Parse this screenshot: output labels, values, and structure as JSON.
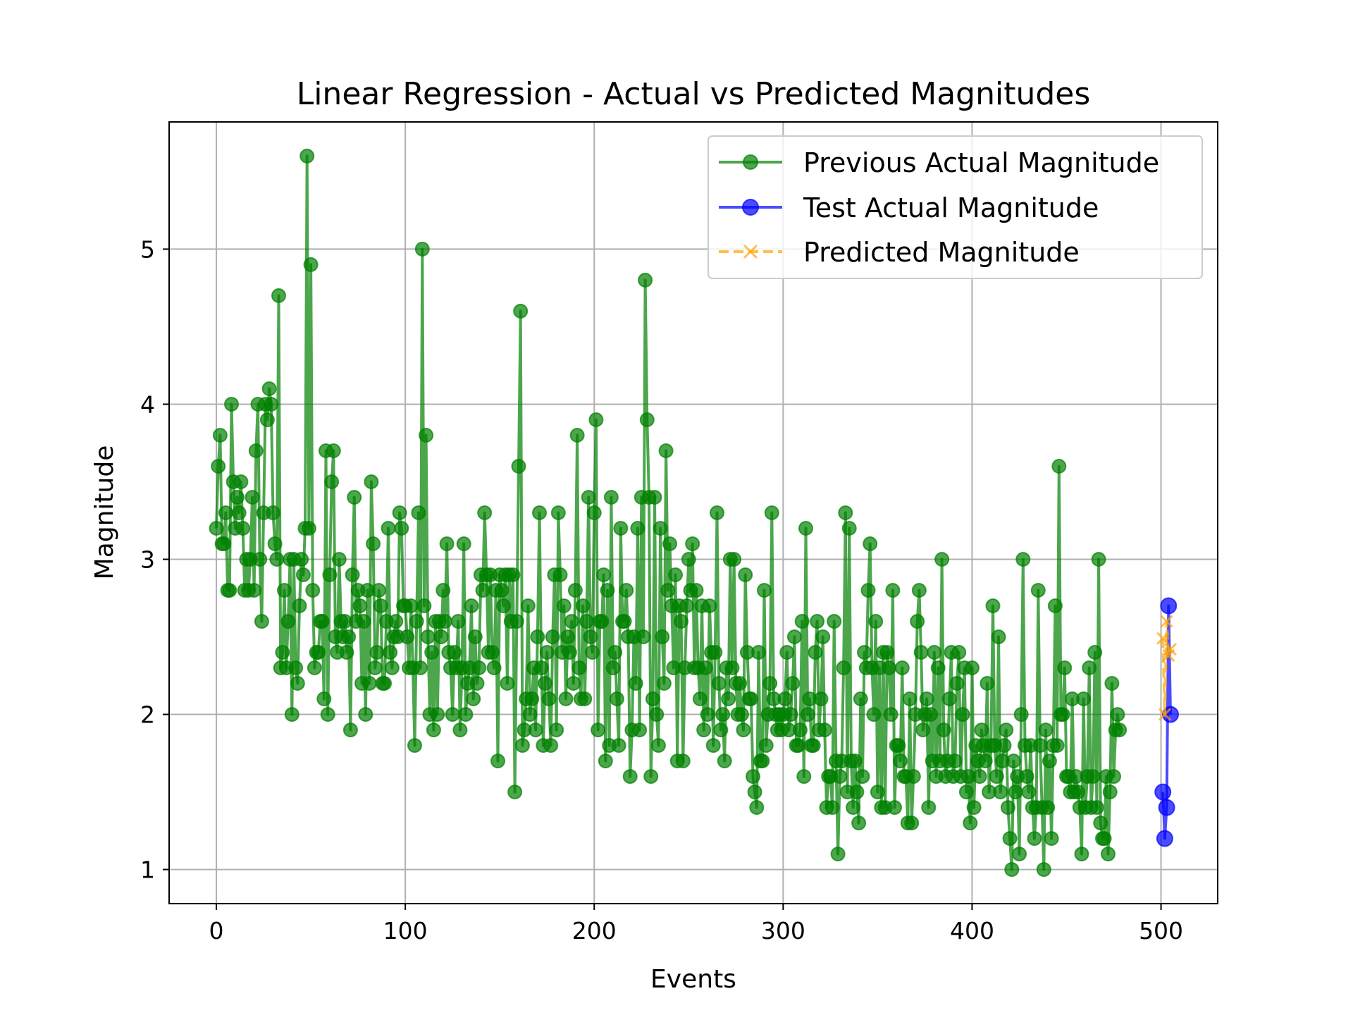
{
  "chart_data": {
    "type": "line",
    "title": "Linear Regression - Actual vs Predicted Magnitudes",
    "xlabel": "Events",
    "ylabel": "Magnitude",
    "xlim": [
      -25,
      530
    ],
    "ylim": [
      0.78,
      5.82
    ],
    "x_ticks": [
      0,
      100,
      200,
      300,
      400,
      500
    ],
    "y_ticks": [
      1,
      2,
      3,
      4,
      5
    ],
    "grid": true,
    "legend_position": "top-right",
    "series": [
      {
        "name": "Previous Actual Magnitude",
        "color": "#008000",
        "marker": "circle",
        "line_style": "solid",
        "x_start": 0,
        "values": [
          3.2,
          3.6,
          3.8,
          3.1,
          3.1,
          3.3,
          2.8,
          2.8,
          4.0,
          3.5,
          3.2,
          3.4,
          3.3,
          3.5,
          3.2,
          2.8,
          3.0,
          2.8,
          3.0,
          3.4,
          2.8,
          3.7,
          4.0,
          3.0,
          2.6,
          3.3,
          4.0,
          3.9,
          4.1,
          4.0,
          3.3,
          3.1,
          3.0,
          4.7,
          2.3,
          2.4,
          2.8,
          2.3,
          2.6,
          3.0,
          2.0,
          3.0,
          2.3,
          2.2,
          2.7,
          3.0,
          2.9,
          3.2,
          5.6,
          3.2,
          4.9,
          2.8,
          2.3,
          2.4,
          2.4,
          2.6,
          2.6,
          2.1,
          3.7,
          2.0,
          2.9,
          3.5,
          3.7,
          2.5,
          2.4,
          3.0,
          2.6,
          2.5,
          2.6,
          2.4,
          2.5,
          1.9,
          2.9,
          3.4,
          2.6,
          2.8,
          2.7,
          2.2,
          2.6,
          2.0,
          2.8,
          2.2,
          3.5,
          3.1,
          2.3,
          2.4,
          2.8,
          2.7,
          2.2,
          2.2,
          2.6,
          3.2,
          2.4,
          2.3,
          2.5,
          2.6,
          2.5,
          3.3,
          3.2,
          2.7,
          2.7,
          2.5,
          2.3,
          2.7,
          2.3,
          1.8,
          2.6,
          3.3,
          2.3,
          5.0,
          2.7,
          3.8,
          2.5,
          2.0,
          2.4,
          1.9,
          2.6,
          2.0,
          2.6,
          2.5,
          2.8,
          2.6,
          3.1,
          2.4,
          2.3,
          2.0,
          2.4,
          2.3,
          2.6,
          1.9,
          2.3,
          3.1,
          2.0,
          2.2,
          2.3,
          2.7,
          2.1,
          2.5,
          2.2,
          2.3,
          2.9,
          2.8,
          3.3,
          2.9,
          2.4,
          2.9,
          2.4,
          2.3,
          2.8,
          1.7,
          2.9,
          2.8,
          2.7,
          2.9,
          2.2,
          2.9,
          2.6,
          2.9,
          1.5,
          2.6,
          3.6,
          4.6,
          1.8,
          1.9,
          2.1,
          2.7,
          2.0,
          2.1,
          2.3,
          1.9,
          2.5,
          3.3,
          2.3,
          1.8,
          2.2,
          2.4,
          2.1,
          1.8,
          2.5,
          2.9,
          1.9,
          3.3,
          2.9,
          2.4,
          2.7,
          2.1,
          2.5,
          2.4,
          2.6,
          2.2,
          2.8,
          3.8,
          2.3,
          2.1,
          2.7,
          2.1,
          2.6,
          3.4,
          2.5,
          2.4,
          3.3,
          3.9,
          1.9,
          2.6,
          2.6,
          2.9,
          1.7,
          2.8,
          1.8,
          3.4,
          2.3,
          2.4,
          2.1,
          1.8,
          3.2,
          2.6,
          2.6,
          2.8,
          2.5,
          1.6,
          1.9,
          2.5,
          2.2,
          3.2,
          1.9,
          3.4,
          2.5,
          4.8,
          3.9,
          3.4,
          1.6,
          2.1,
          3.4,
          2.0,
          1.8,
          3.2,
          2.5,
          2.2,
          3.7,
          2.8,
          3.1,
          2.7,
          2.3,
          2.9,
          1.7,
          2.7,
          2.6,
          1.7,
          2.3,
          2.7,
          3.0,
          2.8,
          3.1,
          2.3,
          2.8,
          2.3,
          2.1,
          2.7,
          1.9,
          2.3,
          2.0,
          2.7,
          2.4,
          1.8,
          2.4,
          3.3,
          2.2,
          1.9,
          2.0,
          1.7,
          2.3,
          2.1,
          3.0,
          2.3,
          3.0,
          2.2,
          2.0,
          2.2,
          2.0,
          1.9,
          2.9,
          2.4,
          2.1,
          2.1,
          1.6,
          1.5,
          1.4,
          2.4,
          1.7,
          1.7,
          2.8,
          1.8,
          2.0,
          2.2,
          3.3,
          2.1,
          2.0,
          1.9,
          2.0,
          1.9,
          2.0,
          2.1,
          2.4,
          1.9,
          2.0,
          2.2,
          2.5,
          1.8,
          1.8,
          1.9,
          2.6,
          1.6,
          3.2,
          2.0,
          2.1,
          1.8,
          1.8,
          2.4,
          2.6,
          1.9,
          2.1,
          2.5,
          1.9,
          1.4,
          1.6,
          1.6,
          1.4,
          2.6,
          1.7,
          1.1,
          1.6,
          1.7,
          2.3,
          3.3,
          1.5,
          3.2,
          1.7,
          1.4,
          1.7,
          1.5,
          1.3,
          2.1,
          1.6,
          2.4,
          2.3,
          2.8,
          3.1,
          2.3,
          2.0,
          2.6,
          1.5,
          2.3,
          1.4,
          2.4,
          1.4,
          2.4,
          2.3,
          2.0,
          2.8,
          1.4,
          1.8,
          1.8,
          1.7,
          2.3,
          1.6,
          1.6,
          1.3,
          2.1,
          1.3,
          1.6,
          2.0,
          2.6,
          2.8,
          2.4,
          1.9,
          2.0,
          2.1,
          1.4,
          2.0,
          1.7,
          2.4,
          1.6,
          2.3,
          1.7,
          3.0,
          1.9,
          1.6,
          1.7,
          2.1,
          2.4,
          1.6,
          1.7,
          2.2,
          2.4,
          1.6,
          2.0,
          2.3,
          1.5,
          1.6,
          1.3,
          2.3,
          1.4,
          1.8,
          1.7,
          1.6,
          1.9,
          1.8,
          1.7,
          2.2,
          1.5,
          1.8,
          2.7,
          1.8,
          1.6,
          2.5,
          1.5,
          1.7,
          1.8,
          1.9,
          1.4,
          1.2,
          1.0,
          1.7,
          1.5,
          1.6,
          1.1,
          2.0,
          3.0,
          1.8,
          1.6,
          1.5,
          1.8,
          1.4,
          1.2,
          1.4,
          2.8,
          1.8,
          1.4,
          1.0,
          1.9,
          1.4,
          1.7,
          1.2,
          1.8,
          2.7,
          1.8,
          3.6,
          2.0,
          2.0,
          2.3,
          1.6,
          1.6,
          1.5,
          2.1,
          1.5,
          1.6,
          1.5,
          1.4,
          1.1,
          2.1,
          1.4,
          1.6,
          2.3,
          1.4,
          1.6,
          2.4,
          1.4,
          3.0,
          1.3,
          1.2,
          1.2,
          1.6,
          1.1,
          1.5,
          2.2,
          1.6,
          1.9,
          2.0,
          1.9
        ]
      },
      {
        "name": "Test Actual Magnitude",
        "color": "#0000ff",
        "marker": "circle",
        "line_style": "solid",
        "x": [
          501,
          502,
          503,
          504,
          505
        ],
        "values": [
          1.5,
          1.2,
          1.4,
          2.7,
          2.0
        ]
      },
      {
        "name": "Predicted Magnitude",
        "color": "#ffa500",
        "marker": "x",
        "line_style": "dashed",
        "x": [
          501,
          502,
          503,
          504,
          505
        ],
        "values": [
          2.49,
          2.0,
          2.6,
          2.38,
          2.42
        ]
      }
    ]
  }
}
